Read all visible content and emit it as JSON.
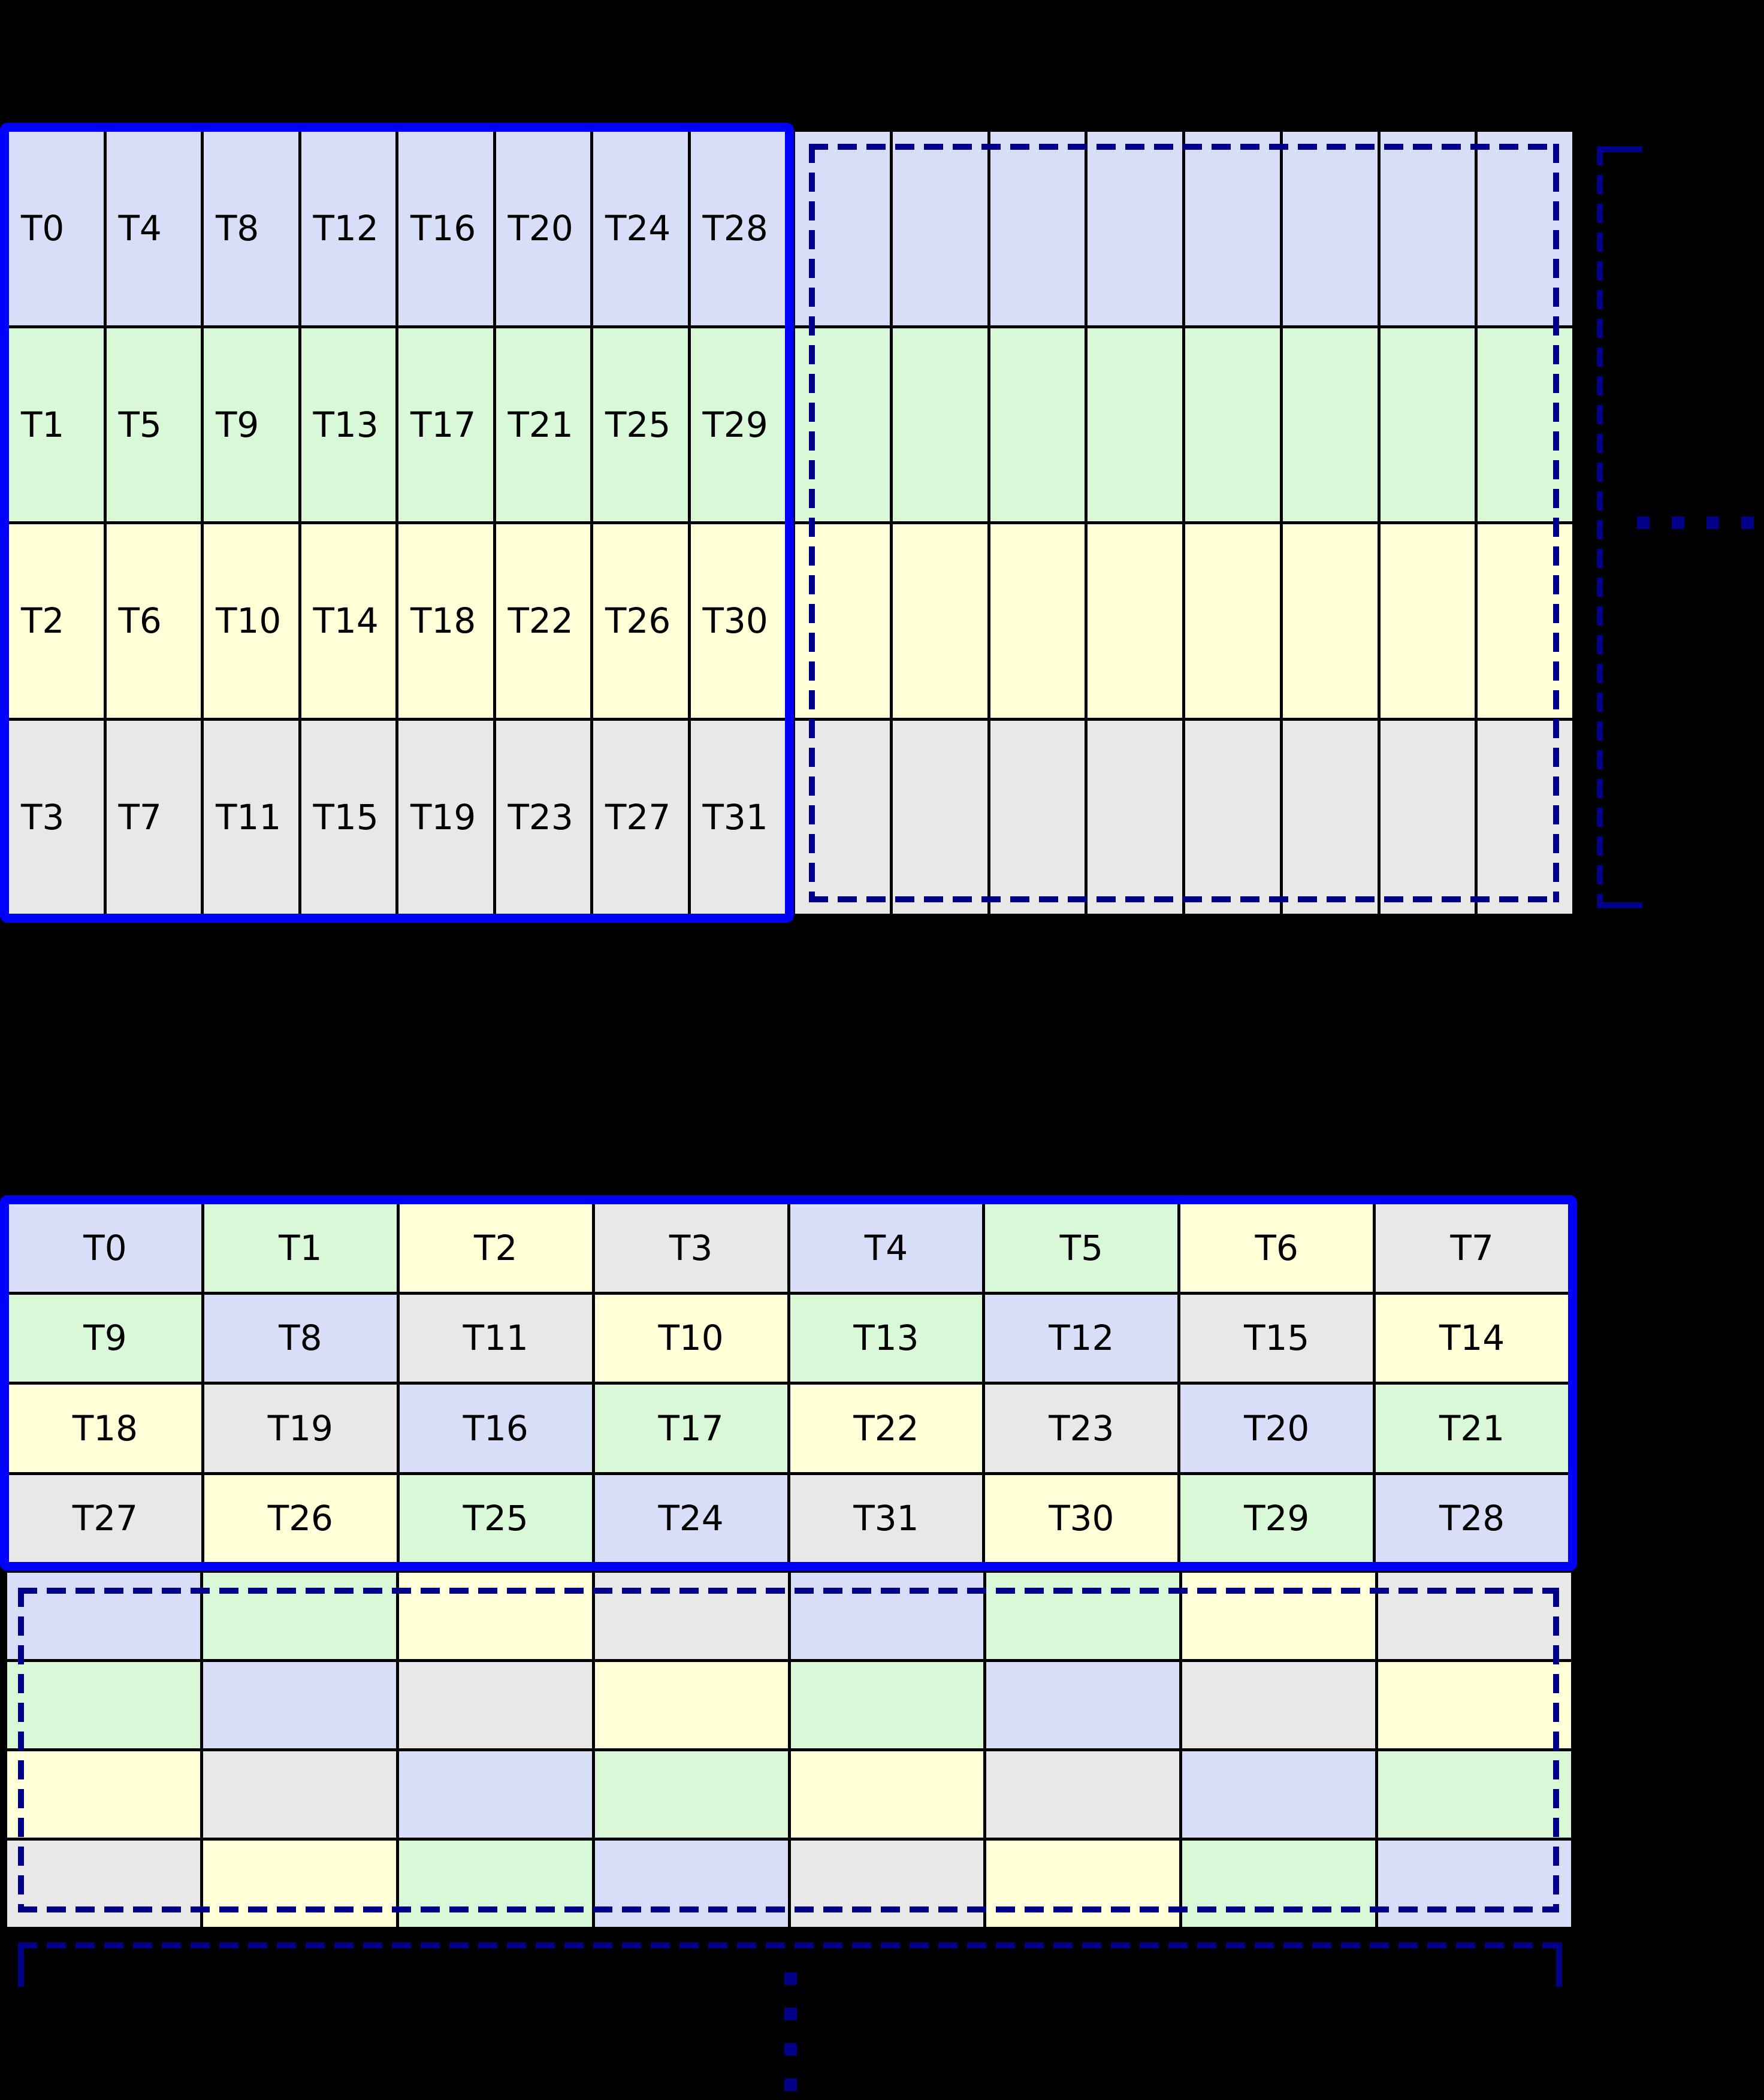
{
  "palette": {
    "background": "#000000",
    "text": "#000000",
    "blue_border": "#0000FF",
    "navy_dashed": "#000089",
    "grid_line": "#000000",
    "cell_blue": "#D8DEF8",
    "cell_green": "#D8F8D8",
    "cell_yellow": "#FFFFD8",
    "cell_gray": "#E8E8E8"
  },
  "top_diagram": {
    "labeled_block": {
      "rows": [
        {
          "color": "blue",
          "cells": [
            "T0",
            "T4",
            "T8",
            "T12",
            "T16",
            "T20",
            "T24",
            "T28"
          ]
        },
        {
          "color": "green",
          "cells": [
            "T1",
            "T5",
            "T9",
            "T13",
            "T17",
            "T21",
            "T25",
            "T29"
          ]
        },
        {
          "color": "yellow",
          "cells": [
            "T2",
            "T6",
            "T10",
            "T14",
            "T18",
            "T22",
            "T26",
            "T30"
          ]
        },
        {
          "color": "gray",
          "cells": [
            "T3",
            "T7",
            "T11",
            "T15",
            "T19",
            "T23",
            "T27",
            "T31"
          ]
        }
      ]
    },
    "ghost_block": {
      "columns": 8,
      "row_colors": [
        "blue",
        "green",
        "yellow",
        "gray"
      ]
    },
    "ellipsis_dot_count": 4
  },
  "bottom_diagram": {
    "labeled_block": {
      "rows": [
        [
          {
            "label": "T0",
            "color": "blue"
          },
          {
            "label": "T1",
            "color": "green"
          },
          {
            "label": "T2",
            "color": "yellow"
          },
          {
            "label": "T3",
            "color": "gray"
          },
          {
            "label": "T4",
            "color": "blue"
          },
          {
            "label": "T5",
            "color": "green"
          },
          {
            "label": "T6",
            "color": "yellow"
          },
          {
            "label": "T7",
            "color": "gray"
          }
        ],
        [
          {
            "label": "T9",
            "color": "green"
          },
          {
            "label": "T8",
            "color": "blue"
          },
          {
            "label": "T11",
            "color": "gray"
          },
          {
            "label": "T10",
            "color": "yellow"
          },
          {
            "label": "T13",
            "color": "green"
          },
          {
            "label": "T12",
            "color": "blue"
          },
          {
            "label": "T15",
            "color": "gray"
          },
          {
            "label": "T14",
            "color": "yellow"
          }
        ],
        [
          {
            "label": "T18",
            "color": "yellow"
          },
          {
            "label": "T19",
            "color": "gray"
          },
          {
            "label": "T16",
            "color": "blue"
          },
          {
            "label": "T17",
            "color": "green"
          },
          {
            "label": "T22",
            "color": "yellow"
          },
          {
            "label": "T23",
            "color": "gray"
          },
          {
            "label": "T20",
            "color": "blue"
          },
          {
            "label": "T21",
            "color": "green"
          }
        ],
        [
          {
            "label": "T27",
            "color": "gray"
          },
          {
            "label": "T26",
            "color": "yellow"
          },
          {
            "label": "T25",
            "color": "green"
          },
          {
            "label": "T24",
            "color": "blue"
          },
          {
            "label": "T31",
            "color": "gray"
          },
          {
            "label": "T30",
            "color": "yellow"
          },
          {
            "label": "T29",
            "color": "green"
          },
          {
            "label": "T28",
            "color": "blue"
          }
        ]
      ]
    },
    "ghost_block": {
      "rows": [
        [
          "blue",
          "green",
          "yellow",
          "gray",
          "blue",
          "green",
          "yellow",
          "gray"
        ],
        [
          "green",
          "blue",
          "gray",
          "yellow",
          "green",
          "blue",
          "gray",
          "yellow"
        ],
        [
          "yellow",
          "gray",
          "blue",
          "green",
          "yellow",
          "gray",
          "blue",
          "green"
        ],
        [
          "gray",
          "yellow",
          "green",
          "blue",
          "gray",
          "yellow",
          "green",
          "blue"
        ]
      ]
    },
    "ellipsis_dot_count": 4
  }
}
